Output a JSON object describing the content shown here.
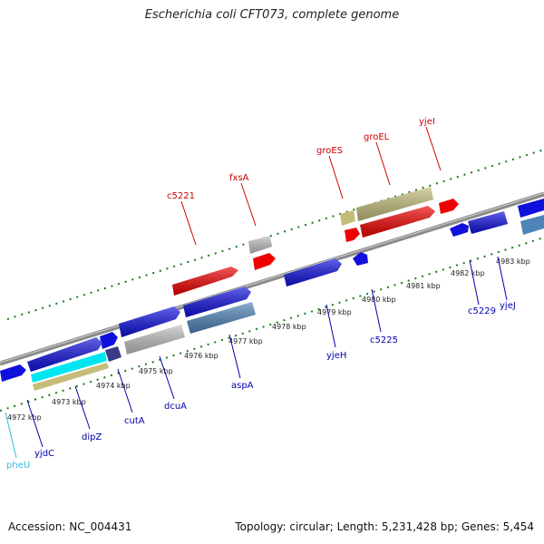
{
  "title": "Escherichia coli CFT073, complete genome",
  "footer": {
    "accession": "Accession: NC_004431",
    "summary": "Topology: circular; Length: 5,231,428 bp; Genes: 5,454"
  },
  "colors": {
    "backbone": "#8c8c8c",
    "ticks": "#1a7a1a",
    "gene_label_top": "#cc0000",
    "gene_label_bottom": "#0000aa",
    "gene_label_trna": "#33bbdd",
    "blue": "#1010dd",
    "red": "#ee0000",
    "gray": "#c0c0c0",
    "steelblue": "#4f84b8",
    "navy": "#3a3a8a",
    "cyan": "#00e6f0",
    "khaki": "#c4bd7a"
  },
  "kbp_labels": [
    "4972 kbp",
    "4973 kbp",
    "4974 kbp",
    "4975 kbp",
    "4976 kbp",
    "4977 kbp",
    "4978 kbp",
    "4979 kbp",
    "4980 kbp",
    "4981 kbp",
    "4982 kbp",
    "4983 kbp"
  ],
  "top_gene_labels": [
    "c5221",
    "fxsA",
    "groES",
    "groEL",
    "yjeI"
  ],
  "bottom_gene_labels": [
    "yjdC",
    "dipZ",
    "cutA",
    "dcuA",
    "aspA",
    "yjeH",
    "c5225",
    "c5229",
    "yjeJ"
  ],
  "trna_gene_labels": [
    "pheU"
  ]
}
